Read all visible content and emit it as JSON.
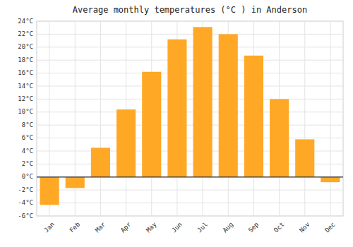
{
  "chart_data": {
    "type": "bar",
    "title": "Average monthly temperatures (°C ) in Anderson",
    "categories": [
      "Jan",
      "Feb",
      "Mar",
      "Apr",
      "May",
      "Jun",
      "Jul",
      "Aug",
      "Sep",
      "Oct",
      "Nov",
      "Dec"
    ],
    "values": [
      -4.3,
      -1.7,
      4.5,
      10.4,
      16.2,
      21.2,
      23.1,
      22.0,
      18.7,
      12.0,
      5.8,
      -0.8
    ],
    "color": "#FFA826",
    "ylim": [
      -6,
      24
    ],
    "yticks": [
      {
        "value": -6,
        "label": "-6°C"
      },
      {
        "value": -4,
        "label": "-4°C"
      },
      {
        "value": -2,
        "label": "-2°C"
      },
      {
        "value": 0,
        "label": "0°C"
      },
      {
        "value": 2,
        "label": "2°C"
      },
      {
        "value": 4,
        "label": "4°C"
      },
      {
        "value": 6,
        "label": "6°C"
      },
      {
        "value": 8,
        "label": "8°C"
      },
      {
        "value": 10,
        "label": "10°C"
      },
      {
        "value": 12,
        "label": "12°C"
      },
      {
        "value": 14,
        "label": "14°C"
      },
      {
        "value": 16,
        "label": "16°C"
      },
      {
        "value": 18,
        "label": "18°C"
      },
      {
        "value": 20,
        "label": "20°C"
      },
      {
        "value": 22,
        "label": "22°C"
      },
      {
        "value": 24,
        "label": "24°C"
      }
    ],
    "grid": true
  }
}
